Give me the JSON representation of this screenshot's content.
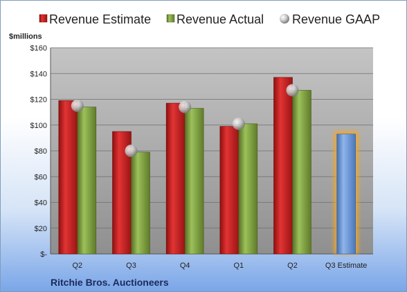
{
  "chart_data": {
    "type": "bar",
    "title": "",
    "ylabel": "$millions",
    "xlabel": "",
    "categories": [
      "Q2",
      "Q3",
      "Q4",
      "Q1",
      "Q2",
      "Q3 Estimate"
    ],
    "series": [
      {
        "name": "Revenue Estimate",
        "values": [
          119,
          95,
          117,
          99,
          137,
          null
        ],
        "color": "#cc1f1f"
      },
      {
        "name": "Revenue Actual",
        "values": [
          114,
          79,
          113,
          101,
          127,
          93
        ],
        "color": "#7ea43c"
      },
      {
        "name": "Revenue GAAP",
        "values": [
          115,
          80,
          114,
          101,
          127,
          null
        ],
        "color": "#b8b8b8"
      }
    ],
    "ylim": [
      0,
      160
    ],
    "yticks": [
      0,
      20,
      40,
      60,
      80,
      100,
      120,
      140,
      160
    ],
    "ytick_labels": [
      "$-",
      "$20",
      "$40",
      "$60",
      "$80",
      "$100",
      "$120",
      "$140",
      "$160"
    ],
    "grid": true,
    "legend": "top",
    "estimate_bar_color": "#6a9ad8",
    "estimate_glow_color": "#f5a623",
    "footer": "Ritchie Bros. Auctioneers"
  }
}
